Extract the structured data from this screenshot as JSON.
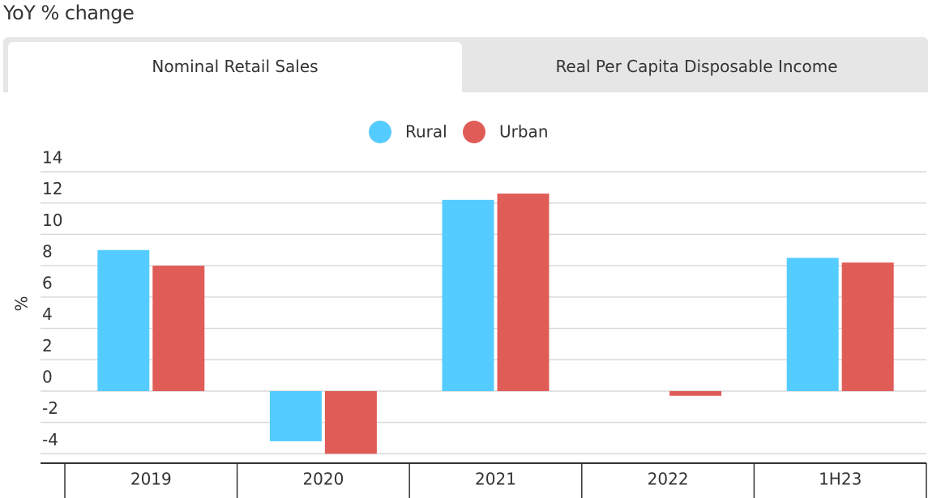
{
  "header": {
    "title": "YoY % change"
  },
  "tabs": [
    "Nominal Retail Sales",
    "Real Per Capita Disposable Income"
  ],
  "chart_data": {
    "type": "bar",
    "ylabel": "%",
    "categories": [
      "2019",
      "2020",
      "2021",
      "2022",
      "1H23"
    ],
    "series": [
      {
        "name": "Rural",
        "color": "#55ccff",
        "values": [
          9.0,
          -3.2,
          12.2,
          0,
          8.5
        ]
      },
      {
        "name": "Urban",
        "color": "#e05c57",
        "values": [
          8.0,
          -4.0,
          12.6,
          -0.3,
          8.2
        ]
      }
    ],
    "ylim": [
      -4.6,
      14
    ],
    "yticks": [
      -4,
      -2,
      0,
      2,
      4,
      6,
      8,
      10,
      12,
      14
    ],
    "grid": true
  }
}
